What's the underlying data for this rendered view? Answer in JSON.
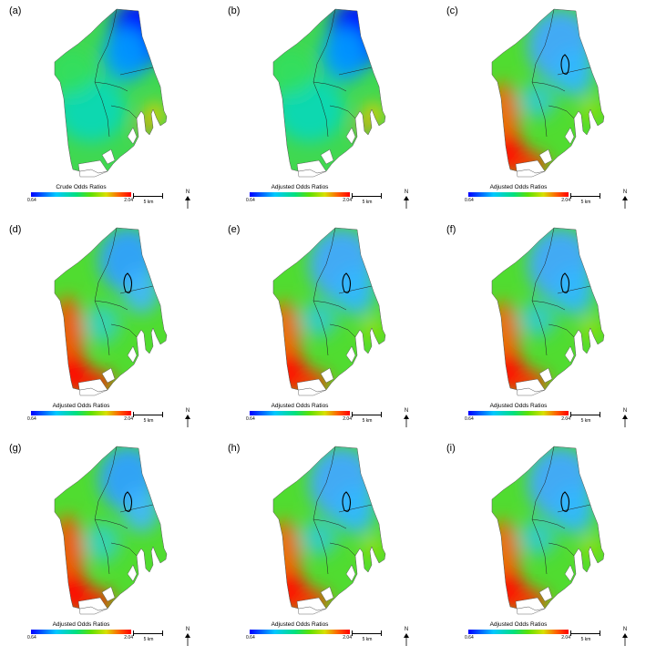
{
  "panels": [
    {
      "label": "(a)",
      "legend_title": "Crude Odds Ratios",
      "variant": 0
    },
    {
      "label": "(b)",
      "legend_title": "Adjusted Odds Ratios",
      "variant": 0
    },
    {
      "label": "(c)",
      "legend_title": "Adjusted Odds Ratios",
      "variant": 1
    },
    {
      "label": "(d)",
      "legend_title": "Adjusted Odds Ratios",
      "variant": 2
    },
    {
      "label": "(e)",
      "legend_title": "Adjusted Odds Ratios",
      "variant": 1
    },
    {
      "label": "(f)",
      "legend_title": "Adjusted Odds Ratios",
      "variant": 1
    },
    {
      "label": "(g)",
      "legend_title": "Adjusted Odds Ratios",
      "variant": 2
    },
    {
      "label": "(h)",
      "legend_title": "Adjusted Odds Ratios",
      "variant": 1
    },
    {
      "label": "(i)",
      "legend_title": "Adjusted Odds Ratios",
      "variant": 1
    }
  ],
  "legend": {
    "min": "0.64",
    "max": "2.04"
  },
  "scale_label": "5 km",
  "north_label": "N",
  "colors": {
    "ramp": [
      "#0000ff",
      "#00c8ff",
      "#00e080",
      "#60e000",
      "#d8e000",
      "#ff6000",
      "#ff0000"
    ],
    "boundary": "#222222"
  }
}
